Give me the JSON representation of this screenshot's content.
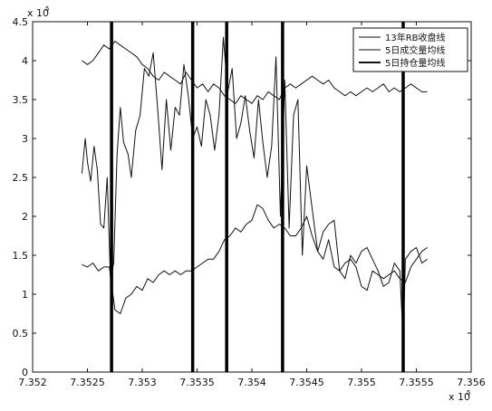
{
  "chart_data": {
    "type": "line",
    "title": "",
    "xlabel": "",
    "ylabel": "",
    "x_multiplier_label": "x 10",
    "x_multiplier_exp": "5",
    "y_multiplier_label": "x 10",
    "y_multiplier_exp": "5",
    "xlim": [
      7.352,
      7.356
    ],
    "ylim": [
      0,
      4.5
    ],
    "x_ticks": [
      7.352,
      7.3525,
      7.353,
      7.3535,
      7.354,
      7.3545,
      7.355,
      7.3555,
      7.356
    ],
    "x_tick_labels": [
      "7.352",
      "7.3525",
      "7.353",
      "7.3535",
      "7.354",
      "7.3545",
      "7.355",
      "7.3555",
      "7.356"
    ],
    "y_ticks": [
      0,
      0.5,
      1,
      1.5,
      2,
      2.5,
      3,
      3.5,
      4,
      4.5
    ],
    "y_tick_labels": [
      "0",
      "0.5",
      "1",
      "1.5",
      "2",
      "2.5",
      "3",
      "3.5",
      "4",
      "4.5"
    ],
    "grid": false,
    "legend_position": "top-right",
    "vertical_markers": [
      7.35272,
      7.35346,
      7.35377,
      7.35428,
      7.35538
    ],
    "series": [
      {
        "name": "13年RB收盘线",
        "color": "#111111",
        "width": 1,
        "x": [
          7.35245,
          7.3525,
          7.35255,
          7.3526,
          7.35265,
          7.3527,
          7.35275,
          7.3528,
          7.35285,
          7.3529,
          7.35295,
          7.353,
          7.35305,
          7.3531,
          7.35315,
          7.3532,
          7.35325,
          7.3533,
          7.35335,
          7.3534,
          7.35345,
          7.3535,
          7.35355,
          7.3536,
          7.35365,
          7.3537,
          7.35375,
          7.3538,
          7.35385,
          7.3539,
          7.35395,
          7.354,
          7.35405,
          7.3541,
          7.35415,
          7.3542,
          7.35425,
          7.3543,
          7.35435,
          7.3544,
          7.35445,
          7.3545,
          7.35455,
          7.3546,
          7.35465,
          7.3547,
          7.35475,
          7.3548,
          7.35485,
          7.3549,
          7.35495,
          7.355,
          7.35505,
          7.3551,
          7.35515,
          7.3552,
          7.35525,
          7.3553,
          7.35535,
          7.3554,
          7.35545,
          7.3555,
          7.35555,
          7.3556
        ],
        "y": [
          4.0,
          3.95,
          4.0,
          4.1,
          4.2,
          4.15,
          4.25,
          4.2,
          4.15,
          4.1,
          4.05,
          3.95,
          3.9,
          3.8,
          3.75,
          3.85,
          3.8,
          3.75,
          3.7,
          3.85,
          3.75,
          3.65,
          3.7,
          3.6,
          3.7,
          3.65,
          3.55,
          3.5,
          3.45,
          3.55,
          3.5,
          3.45,
          3.55,
          3.5,
          3.6,
          3.55,
          3.5,
          3.65,
          3.7,
          3.65,
          3.7,
          3.75,
          3.8,
          3.75,
          3.7,
          3.75,
          3.65,
          3.6,
          3.55,
          3.6,
          3.55,
          3.6,
          3.65,
          3.6,
          3.65,
          3.7,
          3.6,
          3.65,
          3.6,
          3.65,
          3.7,
          3.65,
          3.6,
          3.6
        ]
      },
      {
        "name": "5日成交量均线",
        "color": "#111111",
        "width": 1,
        "x": [
          7.35245,
          7.35248,
          7.3525,
          7.35253,
          7.35256,
          7.35259,
          7.35262,
          7.35265,
          7.35268,
          7.35271,
          7.35274,
          7.35277,
          7.3528,
          7.35283,
          7.35287,
          7.3529,
          7.35294,
          7.35298,
          7.35302,
          7.35306,
          7.3531,
          7.35314,
          7.35318,
          7.35322,
          7.35326,
          7.3533,
          7.35334,
          7.35338,
          7.35342,
          7.35346,
          7.3535,
          7.35354,
          7.35358,
          7.35362,
          7.35366,
          7.3537,
          7.35374,
          7.35378,
          7.35382,
          7.35386,
          7.3539,
          7.35394,
          7.35398,
          7.35402,
          7.35406,
          7.3541,
          7.35414,
          7.35418,
          7.35422,
          7.35426,
          7.3543,
          7.35434,
          7.35438,
          7.35442,
          7.35446,
          7.3545,
          7.35455,
          7.3546,
          7.35465,
          7.3547,
          7.35475,
          7.3548,
          7.35485,
          7.3549,
          7.35495,
          7.355,
          7.35505,
          7.3551,
          7.35515,
          7.3552,
          7.35525,
          7.3553,
          7.35535,
          7.35538,
          7.3554,
          7.35545,
          7.3555,
          7.35555,
          7.3556
        ],
        "y": [
          2.55,
          3.0,
          2.7,
          2.45,
          2.9,
          2.6,
          1.9,
          1.85,
          2.5,
          1.2,
          1.4,
          2.8,
          3.4,
          2.95,
          2.8,
          2.5,
          3.1,
          3.3,
          3.9,
          3.8,
          4.1,
          3.4,
          2.6,
          3.5,
          2.85,
          3.4,
          3.3,
          3.95,
          3.55,
          3.0,
          3.15,
          2.9,
          3.5,
          3.3,
          2.85,
          3.3,
          4.3,
          3.6,
          3.9,
          3.0,
          3.2,
          3.55,
          3.1,
          2.75,
          3.5,
          2.95,
          2.5,
          2.9,
          4.05,
          2.0,
          3.75,
          1.85,
          3.3,
          3.5,
          1.5,
          2.65,
          2.1,
          1.55,
          1.45,
          1.7,
          1.35,
          1.3,
          1.2,
          1.5,
          1.4,
          1.55,
          1.6,
          1.45,
          1.3,
          1.1,
          1.15,
          1.4,
          1.3,
          0.4,
          1.45,
          1.55,
          1.6,
          1.4,
          1.45
        ]
      },
      {
        "name": "5日持仓量均线",
        "color": "#111111",
        "width": 1,
        "x": [
          7.35245,
          7.3525,
          7.35255,
          7.3526,
          7.35265,
          7.3527,
          7.35275,
          7.3528,
          7.35285,
          7.3529,
          7.35295,
          7.353,
          7.35305,
          7.3531,
          7.35315,
          7.3532,
          7.35325,
          7.3533,
          7.35335,
          7.3534,
          7.35345,
          7.3535,
          7.35355,
          7.3536,
          7.35365,
          7.3537,
          7.35375,
          7.3538,
          7.35385,
          7.3539,
          7.35395,
          7.354,
          7.35405,
          7.3541,
          7.35415,
          7.3542,
          7.35425,
          7.3543,
          7.35435,
          7.3544,
          7.35445,
          7.3545,
          7.35455,
          7.3546,
          7.35465,
          7.3547,
          7.35475,
          7.3548,
          7.35485,
          7.3549,
          7.35495,
          7.355,
          7.35505,
          7.3551,
          7.35515,
          7.3552,
          7.35525,
          7.3553,
          7.35535,
          7.3554,
          7.35545,
          7.3555,
          7.35555,
          7.3556
        ],
        "y": [
          1.38,
          1.35,
          1.4,
          1.3,
          1.35,
          1.35,
          0.8,
          0.75,
          0.95,
          1.0,
          1.1,
          1.05,
          1.2,
          1.15,
          1.25,
          1.3,
          1.25,
          1.3,
          1.25,
          1.3,
          1.3,
          1.35,
          1.4,
          1.45,
          1.45,
          1.55,
          1.7,
          1.75,
          1.85,
          1.8,
          1.9,
          1.95,
          2.15,
          2.1,
          1.95,
          1.85,
          1.9,
          1.85,
          1.75,
          1.75,
          1.85,
          2.0,
          1.75,
          1.55,
          1.8,
          1.9,
          1.95,
          1.3,
          1.4,
          1.45,
          1.35,
          1.1,
          1.05,
          1.3,
          1.25,
          1.2,
          1.25,
          1.3,
          1.2,
          1.15,
          1.35,
          1.45,
          1.55,
          1.6
        ]
      }
    ]
  }
}
